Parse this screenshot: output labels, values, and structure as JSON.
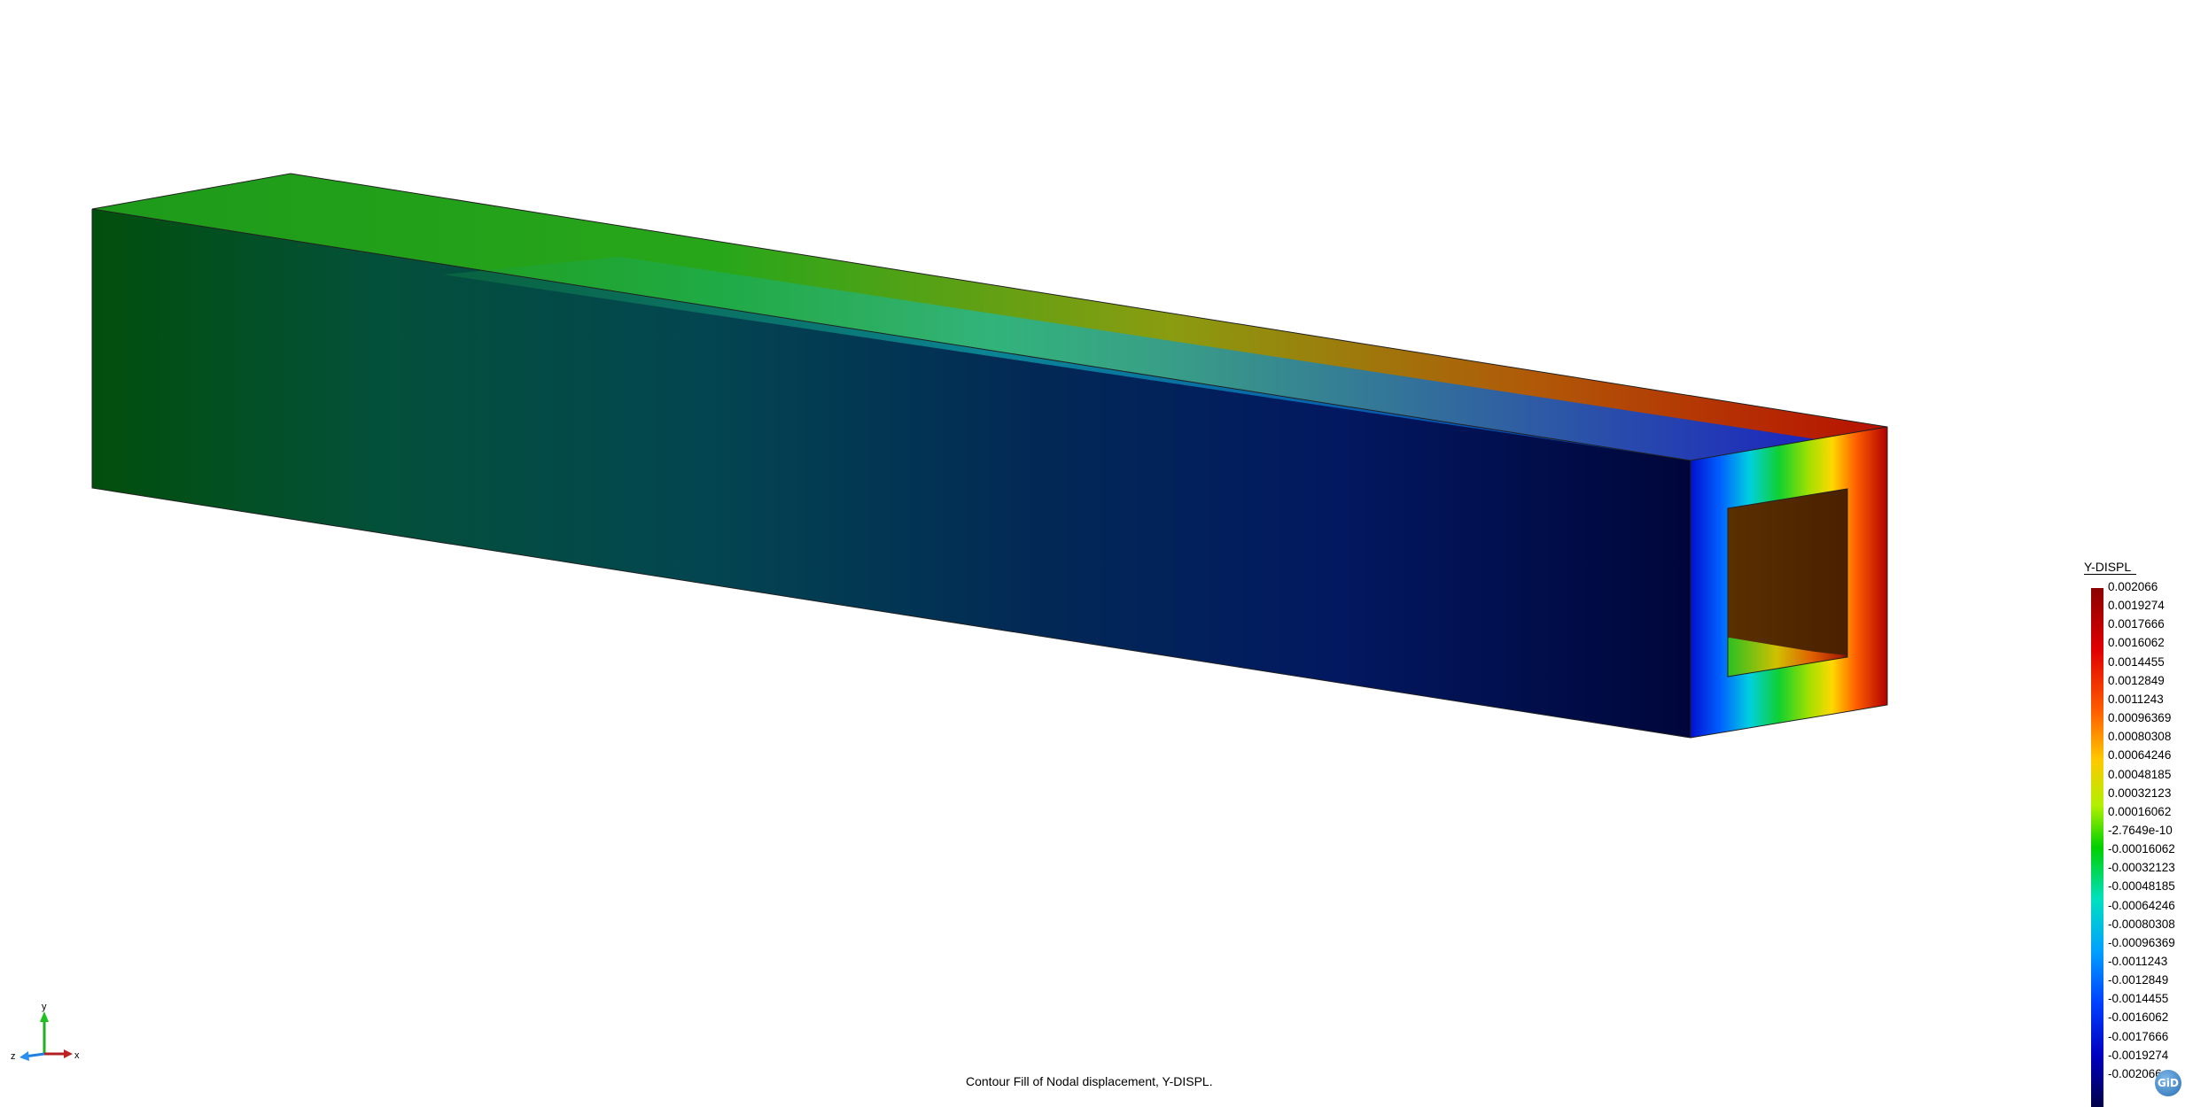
{
  "legend": {
    "title": "Y-DISPL",
    "values": [
      "0.002066",
      "0.0019274",
      "0.0017666",
      "0.0016062",
      "0.0014455",
      "0.0012849",
      "0.0011243",
      "0.00096369",
      "0.00080308",
      "0.00064246",
      "0.00048185",
      "0.00032123",
      "0.00016062",
      "-2.7649e-10",
      "-0.00016062",
      "-0.00032123",
      "-0.00048185",
      "-0.00064246",
      "-0.00080308",
      "-0.00096369",
      "-0.0011243",
      "-0.0012849",
      "-0.0014455",
      "-0.0016062",
      "-0.0017666",
      "-0.0019274",
      "-0.002066"
    ]
  },
  "caption": "Contour Fill of Nodal displacement, Y-DISPL.",
  "axes": {
    "x_label": "x",
    "y_label": "y",
    "z_label": "z"
  },
  "logo": "GiD",
  "colors": {
    "max": "#8b0000",
    "zero": "#00c800",
    "min": "#00005a",
    "background": "#ffffff"
  }
}
